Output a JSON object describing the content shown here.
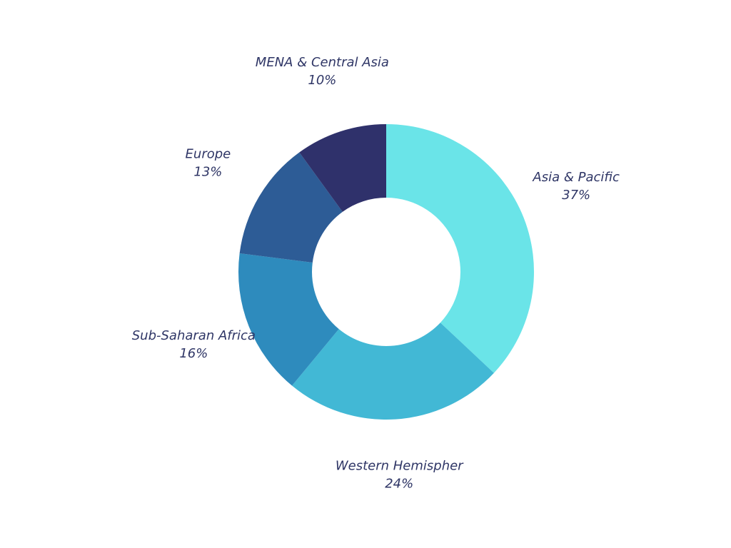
{
  "chart_data": {
    "type": "pie",
    "donut": true,
    "slices": [
      {
        "name": "Asia & Pacific",
        "value": 37,
        "value_label": "37%",
        "color": "#6ae4e8"
      },
      {
        "name": "Western Hemispher",
        "value": 24,
        "value_label": "24%",
        "color": "#42b8d5"
      },
      {
        "name": "Sub-Saharan Africa",
        "value": 16,
        "value_label": "16%",
        "color": "#2e8bbd"
      },
      {
        "name": "Europe",
        "value": 13,
        "value_label": "13%",
        "color": "#2d5c96"
      },
      {
        "name": "MENA & Central Asia",
        "value": 10,
        "value_label": "10%",
        "color": "#2f316b"
      }
    ],
    "start_angle_deg": 0,
    "direction": "clockwise",
    "legend": "none"
  }
}
